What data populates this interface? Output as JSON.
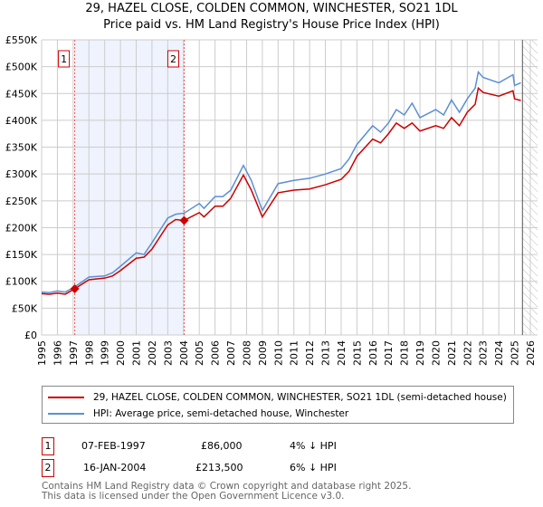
{
  "chart_data": {
    "type": "line",
    "title": "29, HAZEL CLOSE, COLDEN COMMON, WINCHESTER, SO21 1DL",
    "subtitle": "Price paid vs. HM Land Registry's House Price Index (HPI)",
    "xlim": [
      1995,
      2026
    ],
    "ylim": [
      0,
      550000
    ],
    "x_ticks": [
      "1995",
      "1996",
      "1997",
      "1998",
      "1999",
      "2000",
      "2001",
      "2002",
      "2003",
      "2004",
      "2005",
      "2006",
      "2007",
      "2008",
      "2009",
      "2010",
      "2011",
      "2012",
      "2013",
      "2014",
      "2015",
      "2016",
      "2017",
      "2018",
      "2019",
      "2020",
      "2021",
      "2022",
      "2023",
      "2024",
      "2025",
      "2026"
    ],
    "y_ticks": [
      {
        "v": 0,
        "l": "£0"
      },
      {
        "v": 50000,
        "l": "£50K"
      },
      {
        "v": 100000,
        "l": "£100K"
      },
      {
        "v": 150000,
        "l": "£150K"
      },
      {
        "v": 200000,
        "l": "£200K"
      },
      {
        "v": 250000,
        "l": "£250K"
      },
      {
        "v": 300000,
        "l": "£300K"
      },
      {
        "v": 350000,
        "l": "£350K"
      },
      {
        "v": 400000,
        "l": "£400K"
      },
      {
        "v": 450000,
        "l": "£450K"
      },
      {
        "v": 500000,
        "l": "£500K"
      },
      {
        "v": 550000,
        "l": "£550K"
      }
    ],
    "grid": true,
    "series": [
      {
        "name": "29, HAZEL CLOSE, COLDEN COMMON, WINCHESTER, SO21 1DL (semi-detached house)",
        "color": "#cc0000",
        "x": [
          1995,
          1995.5,
          1996,
          1996.5,
          1997.1,
          1998,
          1999,
          1999.5,
          2000,
          2001,
          2001.5,
          2002,
          2003,
          2003.5,
          2004.04,
          2005,
          2005.3,
          2006,
          2006.5,
          2007,
          2007.8,
          2008.3,
          2009.0,
          2010,
          2011,
          2012,
          2013,
          2014,
          2014.5,
          2015,
          2016,
          2016.5,
          2017,
          2017.5,
          2018,
          2018.5,
          2019,
          2020,
          2020.5,
          2021,
          2021.5,
          2022,
          2022.5,
          2022.7,
          2023,
          2024,
          2024.9,
          2025,
          2025.4
        ],
        "y": [
          77000,
          76000,
          78000,
          76000,
          86000,
          103000,
          106000,
          110000,
          120000,
          143000,
          145000,
          160000,
          205000,
          215000,
          213500,
          228000,
          220000,
          240000,
          240000,
          255000,
          298000,
          270000,
          220000,
          265000,
          270000,
          272000,
          280000,
          290000,
          305000,
          333000,
          365000,
          358000,
          375000,
          395000,
          385000,
          395000,
          380000,
          390000,
          385000,
          405000,
          390000,
          415000,
          430000,
          460000,
          452000,
          445000,
          455000,
          440000,
          437000
        ]
      },
      {
        "name": "HPI: Average price, semi-detached house, Winchester",
        "color": "#5b8fd4",
        "x": [
          1995,
          1995.5,
          1996,
          1996.5,
          1997.1,
          1998,
          1999,
          1999.5,
          2000,
          2001,
          2001.5,
          2002,
          2003,
          2003.5,
          2004.04,
          2005,
          2005.3,
          2006,
          2006.5,
          2007,
          2007.8,
          2008.3,
          2009.0,
          2010,
          2011,
          2012,
          2013,
          2014,
          2014.5,
          2015,
          2016,
          2016.5,
          2017,
          2017.5,
          2018,
          2018.5,
          2019,
          2020,
          2020.5,
          2021,
          2021.5,
          2022,
          2022.5,
          2022.7,
          2023,
          2024,
          2024.9,
          2025,
          2025.4
        ],
        "y": [
          80000,
          79000,
          82000,
          80000,
          89600,
          108000,
          110000,
          116000,
          128000,
          153000,
          150000,
          172000,
          218000,
          225000,
          227000,
          245000,
          236000,
          258000,
          258000,
          270000,
          316000,
          288000,
          232000,
          282000,
          288000,
          292000,
          300000,
          310000,
          328000,
          355000,
          390000,
          378000,
          395000,
          420000,
          410000,
          432000,
          405000,
          420000,
          410000,
          438000,
          415000,
          440000,
          460000,
          490000,
          480000,
          470000,
          485000,
          465000,
          470000
        ]
      }
    ],
    "sales": [
      {
        "n": "1",
        "x": 1997.1,
        "y": 86000
      },
      {
        "n": "2",
        "x": 2004.04,
        "y": 213500
      }
    ],
    "shade": [
      1997.1,
      2004.04
    ],
    "hatch_from": 2025.5
  },
  "legend": {
    "red": "29, HAZEL CLOSE, COLDEN COMMON, WINCHESTER, SO21 1DL (semi-detached house)",
    "blue": "HPI: Average price, semi-detached house, Winchester"
  },
  "transactions": [
    {
      "n": "1",
      "date": "07-FEB-1997",
      "price": "£86,000",
      "hpi": "4% ↓ HPI"
    },
    {
      "n": "2",
      "date": "16-JAN-2004",
      "price": "£213,500",
      "hpi": "6% ↓ HPI"
    }
  ],
  "footer": [
    "Contains HM Land Registry data © Crown copyright and database right 2025.",
    "This data is licensed under the Open Government Licence v3.0."
  ]
}
